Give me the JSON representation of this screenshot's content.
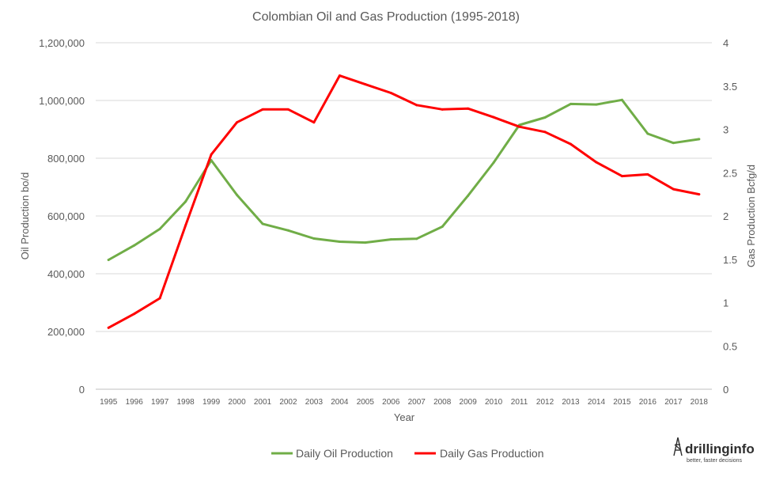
{
  "chart_data": {
    "type": "line",
    "title": "Colombian Oil and Gas Production (1995-2018)",
    "xlabel": "Year",
    "ylabel_left": "Oil Production  bo/d",
    "ylabel_right": "Gas Production  Bcfg/d",
    "categories": [
      "1995",
      "1996",
      "1997",
      "1998",
      "1999",
      "2000",
      "2001",
      "2002",
      "2003",
      "2004",
      "2005",
      "2006",
      "2007",
      "2008",
      "2009",
      "2010",
      "2011",
      "2012",
      "2013",
      "2014",
      "2015",
      "2016",
      "2017",
      "2018"
    ],
    "ylim_left": [
      0,
      1200000
    ],
    "ylim_right": [
      0,
      4
    ],
    "yticks_left": [
      "0",
      "200,000",
      "400,000",
      "600,000",
      "800,000",
      "1,000,000",
      "1,200,000"
    ],
    "yticks_right": [
      "0",
      "0.5",
      "1",
      "1.5",
      "2",
      "2.5",
      "3",
      "3.5",
      "4"
    ],
    "grid": true,
    "legend_position": "bottom",
    "series": [
      {
        "name": "Daily Oil Production",
        "axis": "left",
        "color": "#70ad47",
        "values": [
          448000,
          498000,
          555000,
          650000,
          793000,
          673000,
          573000,
          550000,
          522000,
          511000,
          508000,
          519000,
          521000,
          563000,
          670000,
          785000,
          915000,
          941000,
          988000,
          986000,
          1002000,
          885000,
          853000,
          866000
        ]
      },
      {
        "name": "Daily Gas Production",
        "axis": "right",
        "color": "#ff0000",
        "values": [
          0.71,
          0.87,
          1.05,
          1.89,
          2.71,
          3.08,
          3.23,
          3.23,
          3.08,
          3.62,
          3.52,
          3.42,
          3.28,
          3.23,
          3.24,
          3.14,
          3.03,
          2.97,
          2.83,
          2.62,
          2.46,
          2.48,
          2.31,
          2.25
        ]
      }
    ]
  },
  "logo": {
    "brand": "drillinginfo",
    "tagline": "better, faster decisions",
    "icon": "derrick-icon",
    "color": "#2e2e2e"
  }
}
